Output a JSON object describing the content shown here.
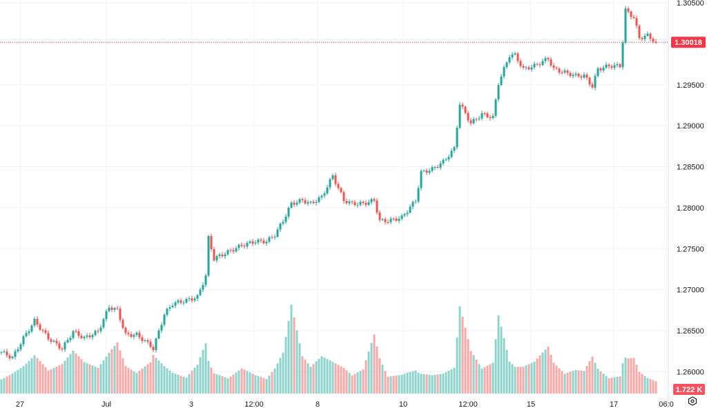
{
  "chart_data": {
    "type": "candlestick",
    "symbol_last_price": "1.30018",
    "volume_last_label": "1.722 K",
    "colors": {
      "up": "#26a69a",
      "down": "#ef5350",
      "up_volume": "#8fd4cc",
      "down_volume": "#f7a9a7",
      "grid": "#f0f3fa",
      "price_label": "#f23645"
    },
    "ylim": [
      1.2575,
      1.3055
    ],
    "y_ticks": [
      "1.30500",
      "1.29500",
      "1.29000",
      "1.28500",
      "1.28000",
      "1.27500",
      "1.27000",
      "1.26500",
      "1.26000"
    ],
    "y_tick_values": [
      1.305,
      1.295,
      1.29,
      1.285,
      1.28,
      1.275,
      1.27,
      1.265,
      1.26
    ],
    "x_ticks": [
      {
        "label": "27",
        "bar": 6.75
      },
      {
        "label": "Jul",
        "bar": 38
      },
      {
        "label": "3",
        "bar": 68.75
      },
      {
        "label": "12:00",
        "bar": 91.5
      },
      {
        "label": "8",
        "bar": 114.5
      },
      {
        "label": "10",
        "bar": 145.5
      },
      {
        "label": "12:00",
        "bar": 169
      },
      {
        "label": "15",
        "bar": 191.75
      },
      {
        "label": "17",
        "bar": 221.75
      },
      {
        "label": "06:0",
        "bar": 240.75
      }
    ],
    "last_bar": 237,
    "series": [
      {
        "t": 0,
        "c": 1.2624,
        "v": 2.2
      },
      {
        "t": 4,
        "c": 1.2617,
        "v": 2.8
      },
      {
        "t": 8,
        "c": 1.2641,
        "v": 3.5
      },
      {
        "t": 12,
        "c": 1.2662,
        "v": 4.5
      },
      {
        "t": 17,
        "c": 1.2641,
        "v": 2.5
      },
      {
        "t": 22,
        "c": 1.2628,
        "v": 3.0
      },
      {
        "t": 26,
        "c": 1.2649,
        "v": 4.2
      },
      {
        "t": 30,
        "c": 1.2641,
        "v": 3.0
      },
      {
        "t": 35,
        "c": 1.2649,
        "v": 2.4
      },
      {
        "t": 39,
        "c": 1.2679,
        "v": 3.8
      },
      {
        "t": 42,
        "c": 1.2675,
        "v": 4.8
      },
      {
        "t": 45,
        "c": 1.2645,
        "v": 2.6
      },
      {
        "t": 49,
        "c": 1.2645,
        "v": 2.0
      },
      {
        "t": 54,
        "c": 1.2632,
        "v": 3.2
      },
      {
        "t": 55,
        "c": 1.2628,
        "v": 4.0
      },
      {
        "t": 59,
        "c": 1.267,
        "v": 3.0
      },
      {
        "t": 62,
        "c": 1.2683,
        "v": 2.4
      },
      {
        "t": 67,
        "c": 1.2687,
        "v": 2.0
      },
      {
        "t": 71,
        "c": 1.2691,
        "v": 4.0
      },
      {
        "t": 74,
        "c": 1.2717,
        "v": 7.5
      },
      {
        "t": 75,
        "c": 1.2763,
        "v": 5.0
      },
      {
        "t": 77,
        "c": 1.2738,
        "v": 3.0
      },
      {
        "t": 82,
        "c": 1.2746,
        "v": 2.0
      },
      {
        "t": 87,
        "c": 1.2754,
        "v": 3.0
      },
      {
        "t": 92,
        "c": 1.2759,
        "v": 2.0
      },
      {
        "t": 96,
        "c": 1.2759,
        "v": 1.5
      },
      {
        "t": 99,
        "c": 1.2767,
        "v": 2.5
      },
      {
        "t": 102,
        "c": 1.2784,
        "v": 4.0
      },
      {
        "t": 105,
        "c": 1.2805,
        "v": 8.5
      },
      {
        "t": 109,
        "c": 1.2809,
        "v": 3.5
      },
      {
        "t": 112,
        "c": 1.2805,
        "v": 2.5
      },
      {
        "t": 116,
        "c": 1.2813,
        "v": 3.5
      },
      {
        "t": 120,
        "c": 1.2839,
        "v": 3.0
      },
      {
        "t": 124,
        "c": 1.2809,
        "v": 2.5
      },
      {
        "t": 127,
        "c": 1.2805,
        "v": 1.8
      },
      {
        "t": 131,
        "c": 1.2805,
        "v": 2.5
      },
      {
        "t": 135,
        "c": 1.2809,
        "v": 6.5
      },
      {
        "t": 137,
        "c": 1.2784,
        "v": 4.0
      },
      {
        "t": 140,
        "c": 1.2784,
        "v": 2.0
      },
      {
        "t": 145,
        "c": 1.2788,
        "v": 2.5
      },
      {
        "t": 150,
        "c": 1.2809,
        "v": 3.5
      },
      {
        "t": 152,
        "c": 1.2843,
        "v": 3.0
      },
      {
        "t": 156,
        "c": 1.2847,
        "v": 2.5
      },
      {
        "t": 160,
        "c": 1.2856,
        "v": 2.5
      },
      {
        "t": 164,
        "c": 1.2872,
        "v": 3.0
      },
      {
        "t": 166,
        "c": 1.2927,
        "v": 9.8
      },
      {
        "t": 170,
        "c": 1.2903,
        "v": 4.5
      },
      {
        "t": 174,
        "c": 1.2914,
        "v": 2.5
      },
      {
        "t": 178,
        "c": 1.291,
        "v": 3.0
      },
      {
        "t": 180,
        "c": 1.2952,
        "v": 7.5
      },
      {
        "t": 184,
        "c": 1.2986,
        "v": 3.0
      },
      {
        "t": 186,
        "c": 1.2986,
        "v": 2.5
      },
      {
        "t": 189,
        "c": 1.2969,
        "v": 2.5
      },
      {
        "t": 193,
        "c": 1.2973,
        "v": 3.0
      },
      {
        "t": 198,
        "c": 1.2982,
        "v": 4.5
      },
      {
        "t": 200,
        "c": 1.2969,
        "v": 3.0
      },
      {
        "t": 204,
        "c": 1.2965,
        "v": 2.0
      },
      {
        "t": 208,
        "c": 1.2961,
        "v": 2.5
      },
      {
        "t": 211,
        "c": 1.2961,
        "v": 2.5
      },
      {
        "t": 214,
        "c": 1.2948,
        "v": 4.3
      },
      {
        "t": 216,
        "c": 1.2969,
        "v": 3.0
      },
      {
        "t": 220,
        "c": 1.2973,
        "v": 2.0
      },
      {
        "t": 224,
        "c": 1.2973,
        "v": 2.5
      },
      {
        "t": 225,
        "c": 1.3003,
        "v": 4.5
      },
      {
        "t": 226,
        "c": 1.3041,
        "v": 5.5
      },
      {
        "t": 229,
        "c": 1.3032,
        "v": 5.2
      },
      {
        "t": 231,
        "c": 1.3007,
        "v": 3.0
      },
      {
        "t": 234,
        "c": 1.301,
        "v": 2.0
      },
      {
        "t": 237,
        "c": 1.30018,
        "v": 1.5
      }
    ]
  }
}
